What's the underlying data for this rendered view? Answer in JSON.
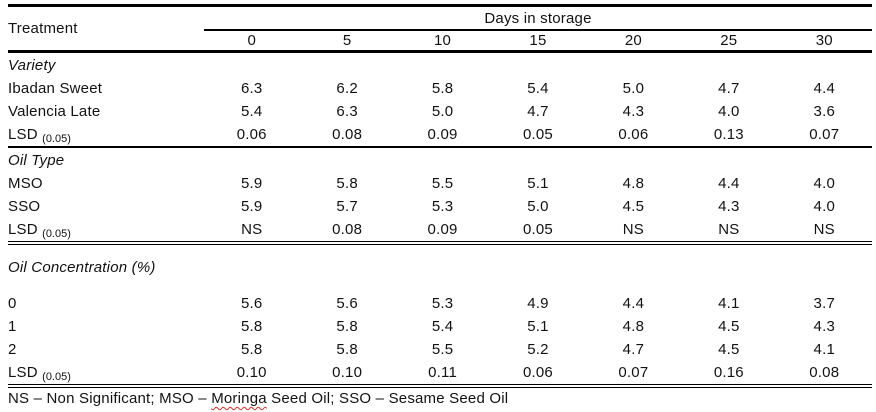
{
  "colors": {
    "rule": "#000000",
    "text": "#121212",
    "squiggle_red": "#d93025",
    "background": "#ffffff"
  },
  "table": {
    "header": {
      "treatment_label": "Treatment",
      "days_group_label": "Days in storage",
      "day_columns": [
        "0",
        "5",
        "10",
        "15",
        "20",
        "25",
        "30"
      ]
    },
    "sections": [
      {
        "title": "Variety",
        "spaced": false,
        "rule": "single",
        "rows": [
          {
            "label": "Ibadan Sweet",
            "values": [
              "6.3",
              "6.2",
              "5.8",
              "5.4",
              "5.0",
              "4.7",
              "4.4"
            ]
          },
          {
            "label": "Valencia Late",
            "values": [
              "5.4",
              "6.3",
              "5.0",
              "4.7",
              "4.3",
              "4.0",
              "3.6"
            ]
          }
        ],
        "lsd": {
          "label": "LSD",
          "sub": "(0.05)",
          "values": [
            "0.06",
            "0.08",
            "0.09",
            "0.05",
            "0.06",
            "0.13",
            "0.07"
          ]
        }
      },
      {
        "title": "Oil Type",
        "spaced": false,
        "rule": "double",
        "rows": [
          {
            "label": "MSO",
            "values": [
              "5.9",
              "5.8",
              "5.5",
              "5.1",
              "4.8",
              "4.4",
              "4.0"
            ]
          },
          {
            "label": "SSO",
            "values": [
              "5.9",
              "5.7",
              "5.3",
              "5.0",
              "4.5",
              "4.3",
              "4.0"
            ]
          }
        ],
        "lsd": {
          "label": "LSD",
          "sub": "(0.05)",
          "values": [
            "NS",
            "0.08",
            "0.09",
            "0.05",
            "NS",
            "NS",
            "NS"
          ]
        }
      },
      {
        "title": "Oil Concentration (%)",
        "spaced": true,
        "rule": "double",
        "rows": [
          {
            "label": "0",
            "values": [
              "5.6",
              "5.6",
              "5.3",
              "4.9",
              "4.4",
              "4.1",
              "3.7"
            ]
          },
          {
            "label": "1",
            "values": [
              "5.8",
              "5.8",
              "5.4",
              "5.1",
              "4.8",
              "4.5",
              "4.3"
            ]
          },
          {
            "label": "2",
            "values": [
              "5.8",
              "5.8",
              "5.5",
              "5.2",
              "4.7",
              "4.5",
              "4.1"
            ]
          }
        ],
        "lsd": {
          "label": "LSD",
          "sub": "(0.05)",
          "values": [
            "0.10",
            "0.10",
            "0.11",
            "0.06",
            "0.07",
            "0.16",
            "0.08"
          ]
        }
      }
    ],
    "footnote": {
      "prefix": "NS – Non Significant; MSO – ",
      "misspelled_word": "Moringa",
      "suffix": " Seed Oil; SSO – Sesame Seed Oil"
    }
  }
}
